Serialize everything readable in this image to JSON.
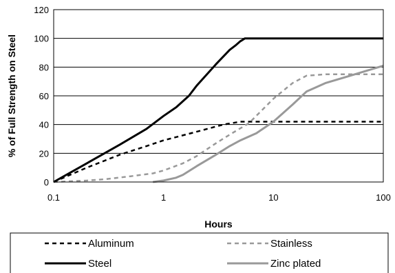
{
  "chart_data": {
    "type": "line",
    "xlabel": "Hours",
    "ylabel": "% of Full Strength on Steel",
    "xscale": "log",
    "xlim": [
      0.1,
      100
    ],
    "ylim": [
      0,
      120
    ],
    "x_ticks": [
      "0.1",
      "1",
      "10",
      "100"
    ],
    "y_ticks": [
      "0",
      "20",
      "40",
      "60",
      "80",
      "100",
      "120"
    ],
    "grid": "horizontal",
    "legend_position": "bottom",
    "series": [
      {
        "name": "Aluminum",
        "style": "dashed",
        "color": "#000000",
        "x": [
          0.1,
          0.2,
          0.4,
          0.7,
          1,
          2,
          3.5,
          5,
          8,
          20,
          50,
          100
        ],
        "y": [
          0,
          10,
          19,
          25,
          29,
          35,
          40,
          42,
          42,
          42,
          42,
          42
        ]
      },
      {
        "name": "Stainless",
        "style": "dashed",
        "color": "#999999",
        "x": [
          0.1,
          0.2,
          0.3,
          0.5,
          0.8,
          1,
          1.5,
          2,
          3,
          4,
          6,
          10,
          15,
          20,
          30,
          50,
          100
        ],
        "y": [
          0,
          1,
          2,
          4,
          6,
          8,
          13,
          18,
          27,
          33,
          41,
          58,
          69,
          74,
          75,
          75,
          75
        ]
      },
      {
        "name": "Steel",
        "style": "solid",
        "color": "#000000",
        "x": [
          0.1,
          0.2,
          0.4,
          0.7,
          1,
          1.3,
          1.7,
          2,
          3,
          4,
          4.5,
          5,
          5.5,
          10,
          50,
          100
        ],
        "y": [
          0,
          13,
          26,
          37,
          46,
          52,
          60,
          67,
          82,
          92,
          95,
          98,
          100,
          100,
          100,
          100
        ]
      },
      {
        "name": "Zinc plated",
        "style": "solid",
        "color": "#999999",
        "x": [
          0.8,
          1,
          1.3,
          1.5,
          2,
          3,
          4,
          5,
          7,
          10,
          15,
          20,
          30,
          50,
          100
        ],
        "y": [
          0,
          1,
          3,
          5,
          11,
          19,
          25,
          29,
          34,
          42,
          54,
          63,
          69,
          74,
          81
        ]
      }
    ]
  }
}
